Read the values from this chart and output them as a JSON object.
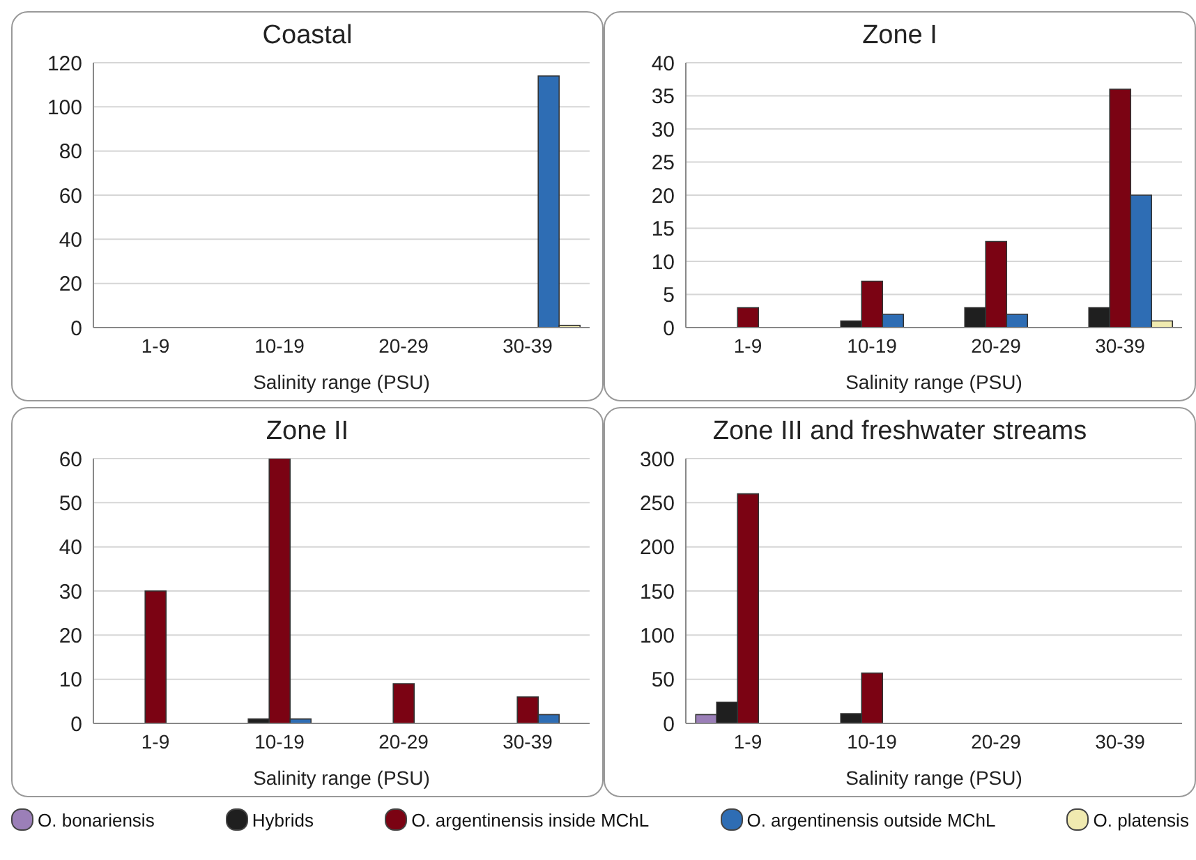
{
  "chart_data": [
    {
      "type": "bar",
      "title": "Coastal",
      "xlabel": "Salinity range (PSU)",
      "categories": [
        "1-9",
        "10-19",
        "20-29",
        "30-39"
      ],
      "ylim": [
        0,
        120
      ],
      "yticks": [
        0,
        20,
        40,
        60,
        80,
        100,
        120
      ],
      "grid": "y",
      "legend": "bottom",
      "series": [
        {
          "name": "O. bonariensis",
          "color": "#9b7fb8",
          "values": [
            0,
            0,
            0,
            0
          ]
        },
        {
          "name": "Hybrids",
          "color": "#1f1f1f",
          "values": [
            0,
            0,
            0,
            0
          ]
        },
        {
          "name": "O. argentinensis  inside MChL",
          "color": "#7b0313",
          "values": [
            0,
            0,
            0,
            0
          ]
        },
        {
          "name": "O. argentinensis outside MChL",
          "color": "#2e6db4",
          "values": [
            0,
            0,
            0,
            114
          ]
        },
        {
          "name": "O. platensis",
          "color": "#f0eab0",
          "values": [
            0,
            0,
            0,
            1
          ]
        }
      ]
    },
    {
      "type": "bar",
      "title": "Zone I",
      "xlabel": "Salinity range (PSU)",
      "categories": [
        "1-9",
        "10-19",
        "20-29",
        "30-39"
      ],
      "ylim": [
        0,
        40
      ],
      "yticks": [
        0,
        5,
        10,
        15,
        20,
        25,
        30,
        35,
        40
      ],
      "grid": "y",
      "series": [
        {
          "color": "#9b7fb8",
          "values": [
            0,
            0,
            0,
            0
          ]
        },
        {
          "color": "#1f1f1f",
          "values": [
            0,
            1,
            3,
            3
          ]
        },
        {
          "color": "#7b0313",
          "values": [
            3,
            7,
            13,
            36
          ]
        },
        {
          "color": "#2e6db4",
          "values": [
            0,
            2,
            2,
            20
          ]
        },
        {
          "color": "#f0eab0",
          "values": [
            0,
            0,
            0,
            1
          ]
        }
      ]
    },
    {
      "type": "bar",
      "title": "Zone II",
      "xlabel": "Salinity range (PSU)",
      "categories": [
        "1-9",
        "10-19",
        "20-29",
        "30-39"
      ],
      "ylim": [
        0,
        60
      ],
      "yticks": [
        0,
        10,
        20,
        30,
        40,
        50,
        60
      ],
      "grid": "y",
      "series": [
        {
          "color": "#9b7fb8",
          "values": [
            0,
            0,
            0,
            0
          ]
        },
        {
          "color": "#1f1f1f",
          "values": [
            0,
            1,
            0,
            0
          ]
        },
        {
          "color": "#7b0313",
          "values": [
            30,
            60,
            9,
            6
          ]
        },
        {
          "color": "#2e6db4",
          "values": [
            0,
            1,
            0,
            2
          ]
        },
        {
          "color": "#f0eab0",
          "values": [
            0,
            0,
            0,
            0
          ]
        }
      ]
    },
    {
      "type": "bar",
      "title": "Zone III and freshwater streams",
      "xlabel": "Salinity range (PSU)",
      "categories": [
        "1-9",
        "10-19",
        "20-29",
        "30-39"
      ],
      "ylim": [
        0,
        300
      ],
      "yticks": [
        0,
        50,
        100,
        150,
        200,
        250,
        300
      ],
      "grid": "y",
      "series": [
        {
          "color": "#9b7fb8",
          "values": [
            10,
            0,
            0,
            0
          ]
        },
        {
          "color": "#1f1f1f",
          "values": [
            24,
            11,
            0,
            0
          ]
        },
        {
          "color": "#7b0313",
          "values": [
            260,
            57,
            0,
            0
          ]
        },
        {
          "color": "#2e6db4",
          "values": [
            0,
            0,
            0,
            0
          ]
        },
        {
          "color": "#f0eab0",
          "values": [
            0,
            0,
            0,
            0
          ]
        }
      ]
    }
  ]
}
